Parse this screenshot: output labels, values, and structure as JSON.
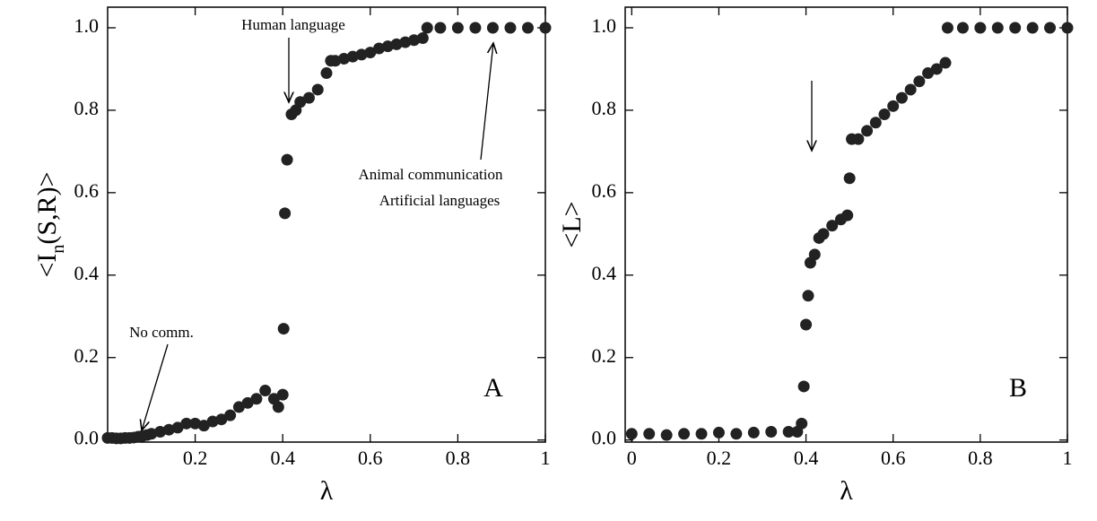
{
  "chart_data": [
    {
      "type": "scatter",
      "panel_label": "A",
      "xlabel": "λ",
      "ylabel": [
        "<I",
        "n",
        "(S,R)>"
      ],
      "color": "#222222",
      "xlim": [
        0,
        1
      ],
      "ylim": [
        -0.005,
        1.05
      ],
      "xticks": [
        0.2,
        0.4,
        0.6,
        0.8,
        1
      ],
      "yticks": [
        {
          "value": 0,
          "label": "0.0"
        },
        {
          "value": 0.2,
          "label": "0.2"
        },
        {
          "value": 0.4,
          "label": "0.4"
        },
        {
          "value": 0.6,
          "label": "0.6"
        },
        {
          "value": 0.8,
          "label": "0.8"
        },
        {
          "value": 1,
          "label": "1.0"
        }
      ],
      "annotations": [
        "Human language",
        "No comm.",
        "Animal communication",
        "Artificial languages"
      ],
      "x": [
        0,
        0.01,
        0.02,
        0.03,
        0.04,
        0.05,
        0.06,
        0.07,
        0.08,
        0.09,
        0.1,
        0.12,
        0.14,
        0.16,
        0.18,
        0.2,
        0.22,
        0.24,
        0.26,
        0.28,
        0.3,
        0.32,
        0.34,
        0.36,
        0.38,
        0.39,
        0.4,
        0.402,
        0.405,
        0.41,
        0.42,
        0.43,
        0.44,
        0.46,
        0.48,
        0.5,
        0.51,
        0.52,
        0.54,
        0.56,
        0.58,
        0.6,
        0.62,
        0.64,
        0.66,
        0.68,
        0.7,
        0.72,
        0.73,
        0.76,
        0.8,
        0.84,
        0.88,
        0.92,
        0.96,
        1
      ],
      "values": [
        0.005,
        0.005,
        0.004,
        0.004,
        0.005,
        0.005,
        0.006,
        0.008,
        0.01,
        0.012,
        0.015,
        0.02,
        0.025,
        0.03,
        0.04,
        0.04,
        0.035,
        0.045,
        0.05,
        0.06,
        0.08,
        0.09,
        0.1,
        0.12,
        0.1,
        0.08,
        0.11,
        0.27,
        0.55,
        0.68,
        0.79,
        0.8,
        0.82,
        0.83,
        0.85,
        0.89,
        0.92,
        0.92,
        0.925,
        0.93,
        0.935,
        0.94,
        0.95,
        0.955,
        0.96,
        0.965,
        0.97,
        0.975,
        1,
        1,
        1,
        1,
        1,
        1,
        1,
        1
      ]
    },
    {
      "type": "scatter",
      "panel_label": "B",
      "xlabel": "λ",
      "ylabel": [
        "<L>"
      ],
      "color": "#222222",
      "xlim": [
        -0.015,
        1
      ],
      "ylim": [
        -0.005,
        1.05
      ],
      "xticks": [
        0,
        0.2,
        0.4,
        0.6,
        0.8,
        1
      ],
      "yticks": [
        {
          "value": 0,
          "label": "0.0"
        },
        {
          "value": 0.2,
          "label": "0.2"
        },
        {
          "value": 0.4,
          "label": "0.4"
        },
        {
          "value": 0.6,
          "label": "0.6"
        },
        {
          "value": 0.8,
          "label": "0.8"
        },
        {
          "value": 1,
          "label": "1.0"
        }
      ],
      "x": [
        0,
        0.04,
        0.08,
        0.12,
        0.16,
        0.2,
        0.24,
        0.28,
        0.32,
        0.36,
        0.38,
        0.39,
        0.395,
        0.4,
        0.405,
        0.41,
        0.42,
        0.43,
        0.44,
        0.46,
        0.48,
        0.495,
        0.5,
        0.505,
        0.52,
        0.54,
        0.56,
        0.58,
        0.6,
        0.62,
        0.64,
        0.66,
        0.68,
        0.7,
        0.72,
        0.725,
        0.76,
        0.8,
        0.84,
        0.88,
        0.92,
        0.96,
        1
      ],
      "values": [
        0.015,
        0.015,
        0.012,
        0.015,
        0.015,
        0.018,
        0.015,
        0.018,
        0.02,
        0.02,
        0.02,
        0.04,
        0.13,
        0.28,
        0.35,
        0.43,
        0.45,
        0.49,
        0.5,
        0.52,
        0.535,
        0.545,
        0.635,
        0.73,
        0.73,
        0.75,
        0.77,
        0.79,
        0.81,
        0.83,
        0.85,
        0.87,
        0.89,
        0.9,
        0.915,
        1,
        1,
        1,
        1,
        1,
        1,
        1,
        1
      ]
    }
  ]
}
